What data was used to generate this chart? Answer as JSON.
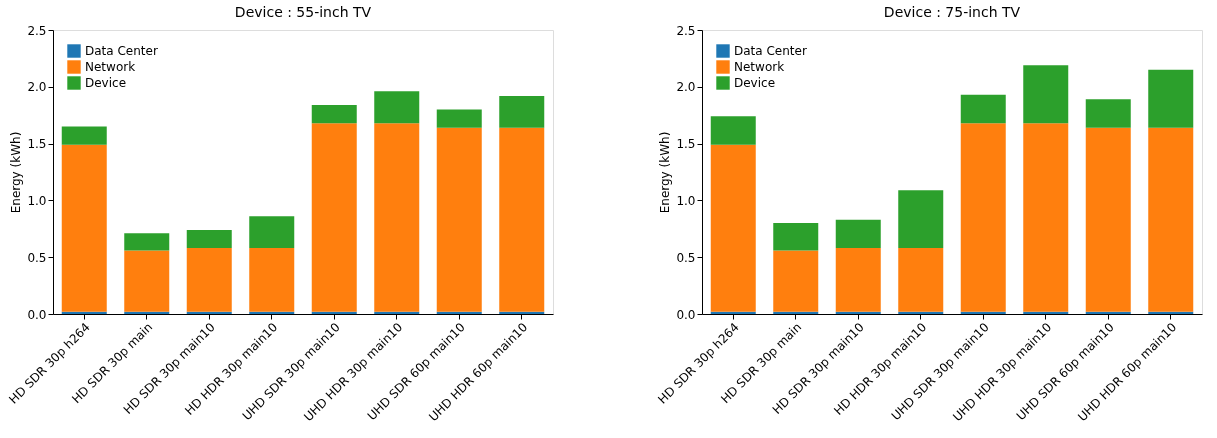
{
  "chart_data": [
    {
      "type": "bar",
      "title": "Device : 55-inch TV",
      "ylabel": "Energy (kWh)",
      "stacked": true,
      "legend": "top left",
      "grid": false,
      "categories": [
        "HD SDR 30p h264",
        "HD SDR 30p main",
        "HD SDR 30p main10",
        "HD HDR 30p main10",
        "UHD SDR 30p main10",
        "UHD HDR 30p main10",
        "UHD SDR 60p main10",
        "UHD HDR 60p main10"
      ],
      "ylim": [
        0,
        2.5
      ],
      "yticks": [
        {
          "value": 0,
          "label": "0.0"
        },
        {
          "value": 0.5,
          "label": "0.5"
        },
        {
          "value": 1,
          "label": "1.0"
        },
        {
          "value": 1.5,
          "label": "1.5"
        },
        {
          "value": 2,
          "label": "2.0"
        },
        {
          "value": 2.5,
          "label": "2.5"
        }
      ],
      "series": [
        {
          "name": "Data Center",
          "color": "#1f77b4",
          "values": [
            0.02,
            0.02,
            0.02,
            0.02,
            0.02,
            0.02,
            0.02,
            0.02
          ]
        },
        {
          "name": "Network",
          "color": "#ff7f0e",
          "values": [
            1.47,
            0.54,
            0.56,
            0.56,
            1.66,
            1.66,
            1.62,
            1.62
          ]
        },
        {
          "name": "Device",
          "color": "#2ca02c",
          "values": [
            0.16,
            0.15,
            0.16,
            0.28,
            0.16,
            0.28,
            0.16,
            0.28
          ]
        }
      ]
    },
    {
      "type": "bar",
      "title": "Device : 75-inch TV",
      "ylabel": "Energy (kWh)",
      "stacked": true,
      "legend": "top left",
      "grid": false,
      "categories": [
        "HD SDR 30p h264",
        "HD SDR 30p main",
        "HD SDR 30p main10",
        "HD HDR 30p main10",
        "UHD SDR 30p main10",
        "UHD HDR 30p main10",
        "UHD SDR 60p main10",
        "UHD HDR 60p main10"
      ],
      "ylim": [
        0,
        2.5
      ],
      "yticks": [
        {
          "value": 0,
          "label": "0.0"
        },
        {
          "value": 0.5,
          "label": "0.5"
        },
        {
          "value": 1,
          "label": "1.0"
        },
        {
          "value": 1.5,
          "label": "1.5"
        },
        {
          "value": 2,
          "label": "2.0"
        },
        {
          "value": 2.5,
          "label": "2.5"
        }
      ],
      "series": [
        {
          "name": "Data Center",
          "color": "#1f77b4",
          "values": [
            0.02,
            0.02,
            0.02,
            0.02,
            0.02,
            0.02,
            0.02,
            0.02
          ]
        },
        {
          "name": "Network",
          "color": "#ff7f0e",
          "values": [
            1.47,
            0.54,
            0.56,
            0.56,
            1.66,
            1.66,
            1.62,
            1.62
          ]
        },
        {
          "name": "Device",
          "color": "#2ca02c",
          "values": [
            0.25,
            0.24,
            0.25,
            0.51,
            0.25,
            0.51,
            0.25,
            0.51
          ]
        }
      ]
    }
  ]
}
